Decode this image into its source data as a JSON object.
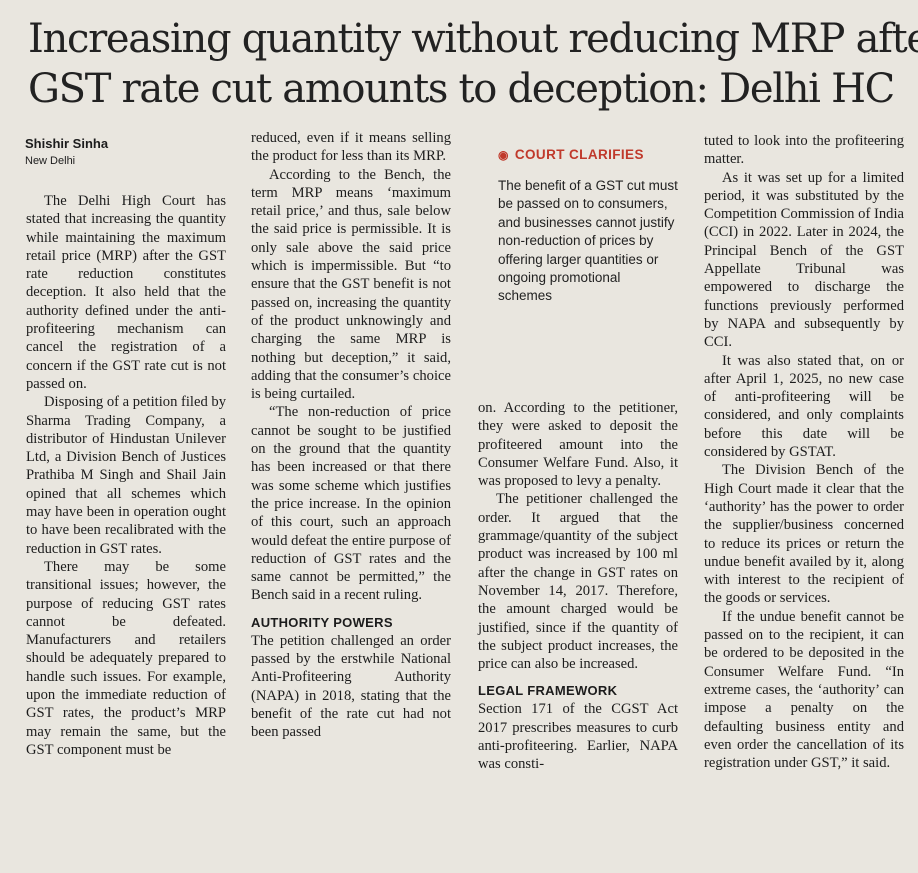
{
  "headline": {
    "line1": "Increasing quantity without reducing MRP after",
    "line2": "GST rate cut amounts to deception: Delhi HC"
  },
  "byline": {
    "author": "Shishir Sinha",
    "place": "New Delhi"
  },
  "callout": {
    "title": "COURT CLARIFIES",
    "body": "The benefit of a GST cut must be passed on to consumers, and businesses cannot justify non-reduction of prices by offering larger quantities or ongoing promotional schemes"
  },
  "col1": [
    "The Delhi High Court has stated that increasing the quantity while maintaining the maximum retail price (MRP) after the GST rate reduction constitutes deception. It also held that the authority defined under the anti-profiteering mechanism can cancel the registration of a concern if the GST rate cut is not passed on.",
    "Disposing of a petition filed by Sharma Trading Company, a distributor of Hindustan Unilever Ltd, a Division Bench of Justices Prathiba M Singh and Shail Jain opined that all schemes which may have been in operation ought to have been recalibrated with the reduction in GST rates.",
    "There may be some transitional issues; however, the purpose of reducing GST rates cannot be defeated. Manufacturers and retailers should be adequately prepared to handle such issues. For example, upon the immediate reduction of GST rates, the product’s MRP may remain the same, but the GST component must be"
  ],
  "col2": {
    "para_cont": "reduced, even if it means selling the product for less than its MRP.",
    "para2": "According to the Bench, the term MRP means ‘maximum retail price,’ and thus, sale below the said price is permissible. It is only sale above the said price which is impermissible. But “to ensure that the GST benefit is not passed on, increasing the quantity of the product unknowingly and charging the same MRP is nothing but deception,” it said, adding that the consumer’s choice is being curtailed.",
    "para3": "“The non-reduction of price cannot be sought to be justified on the ground that the quantity has been increased or that there was some scheme which justifies the price increase. In the opinion of this court, such an approach would defeat the entire purpose of reduction of GST rates and the same cannot be permitted,” the Bench said in a recent ruling.",
    "subhead": "AUTHORITY POWERS",
    "para4": "The petition challenged an order passed by the erstwhile National Anti-Profiteering Authority (NAPA) in 2018, stating that the benefit of the rate cut had not been passed"
  },
  "col3": {
    "para_cont": "on. According to the petitioner, they were asked to deposit the profiteered amount into the Consumer Welfare Fund. Also, it was proposed to levy a penalty.",
    "para2": "The petitioner challenged the order. It argued that the grammage/quantity of the subject product was increased by 100 ml after the change in GST rates on November 14, 2017. Therefore, the amount charged would be justified, since if the quantity of the subject product increases, the price can also be increased.",
    "subhead": "LEGAL FRAMEWORK",
    "para3": "Section 171 of the CGST Act 2017 prescribes measures to curb anti-profiteering. Earlier, NAPA was consti-"
  },
  "col4": {
    "para_cont": "tuted to look into the profiteering matter.",
    "para2": "As it was set up for a limited period, it was substituted by the Competition Commission of India (CCI) in 2022. Later in 2024, the Principal Bench of the GST Appellate Tribunal was empowered to discharge the functions previously performed by NAPA and subsequently by CCI.",
    "para3": "It was also stated that, on or after April 1, 2025, no new case of anti-profiteering will be considered, and only complaints before this date will be considered by GSTAT.",
    "para4": "The Division Bench of the High Court made it clear that the ‘authority’ has the power to order the supplier/business concerned to reduce its prices or return the undue benefit availed by it, along with interest to the recipient of the goods or services.",
    "para5": "If the undue benefit cannot be passed on to the recipient, it can be ordered to be deposited in the Consumer Welfare Fund. “In extreme cases, the ‘authority’ can impose a penalty on the defaulting business entity and even order the cancellation of its registration under GST,” it said."
  },
  "colors": {
    "text": "#1c1c1c",
    "paper": "#e9e6df",
    "accent": "#c0392b"
  }
}
